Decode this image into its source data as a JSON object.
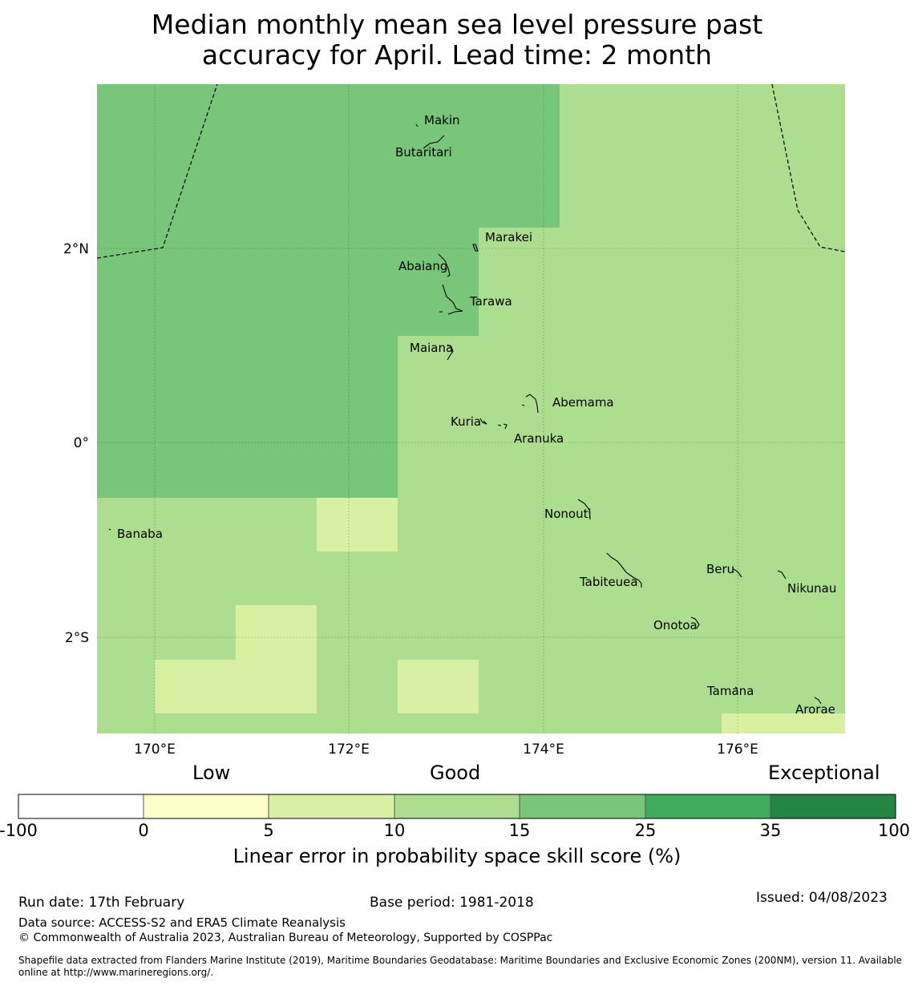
{
  "title_line1": "Median monthly mean sea level pressure past",
  "title_line2": "accuracy for April. Lead time: 2 month",
  "map": {
    "lon_labels": [
      "170°E",
      "172°E",
      "174°E",
      "176°E"
    ],
    "lat_labels": [
      "2°N",
      "0°",
      "2°S"
    ],
    "islands": [
      "Makin",
      "Butaritari",
      "Marakei",
      "Abaiang",
      "Tarawa",
      "Maiana",
      "Abemama",
      "Kuria",
      "Aranuka",
      "Nonouti",
      "Banaba",
      "Beru",
      "Tabiteuea",
      "Nikunau",
      "Onotoa",
      "Tamana",
      "Arorae"
    ]
  },
  "legend": {
    "qualitative": [
      "Low",
      "Good",
      "Exceptional"
    ],
    "ticks": [
      "-100",
      "0",
      "5",
      "10",
      "15",
      "25",
      "35",
      "100"
    ],
    "colors": [
      "#ffffff",
      "#ffffcc",
      "#d9f0a3",
      "#addd8e",
      "#78c679",
      "#41ab5d",
      "#238443"
    ],
    "title": "Linear error in probability space skill score (%)"
  },
  "footer": {
    "run_date": "Run date: 17th February",
    "base_period": "Base period: 1981-2018",
    "issued": "Issued: 04/08/2023",
    "data_source": "Data source: ACCESS-S2 and ERA5 Climate Reanalysis",
    "copyright": "© Commonwealth of Australia 2023, Australian Bureau of Meteorology, Supported by COSPPac",
    "shapefile_line1": "Shapefile data extracted from Flanders Marine Institute (2019), Maritime Boundaries Geodatabase: Maritime Boundaries and Exclusive Economic Zones (200NM), version 11. Available",
    "shapefile_line2": "online at http://www.marineregions.org/."
  }
}
